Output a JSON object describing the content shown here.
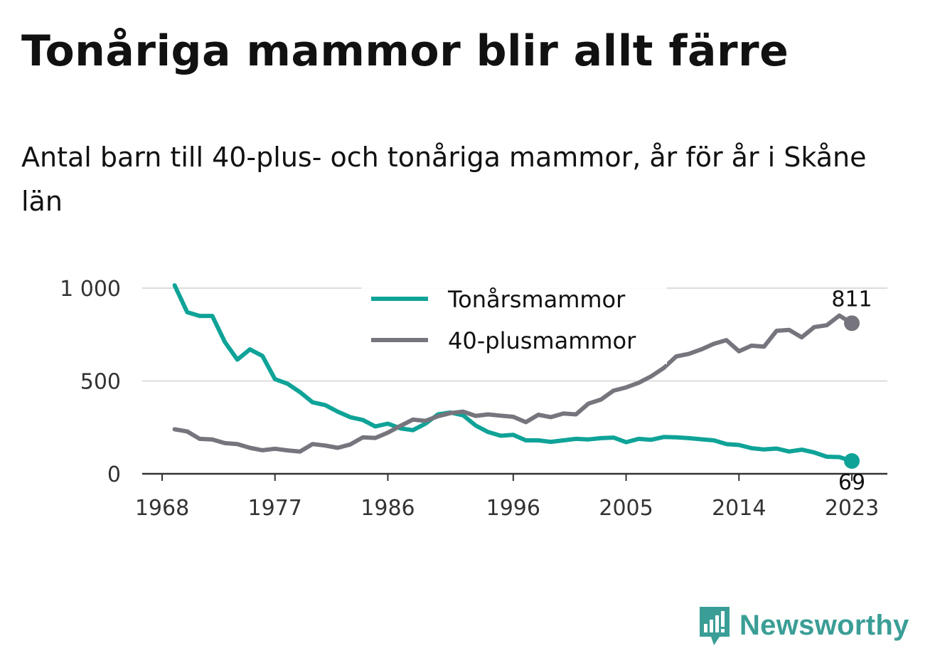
{
  "chart_data": {
    "type": "line",
    "title": "Tonåriga mammor blir allt färre",
    "subtitle": "Antal barn till 40-plus- och tonåriga mammor, år för år i Skåne län",
    "xlabel": "",
    "ylabel": "",
    "x": [
      1969,
      1970,
      1971,
      1972,
      1973,
      1974,
      1975,
      1976,
      1977,
      1978,
      1979,
      1980,
      1981,
      1982,
      1983,
      1984,
      1985,
      1986,
      1987,
      1988,
      1989,
      1990,
      1991,
      1992,
      1993,
      1994,
      1995,
      1996,
      1997,
      1998,
      1999,
      2000,
      2001,
      2002,
      2003,
      2004,
      2005,
      2006,
      2007,
      2008,
      2009,
      2010,
      2011,
      2012,
      2013,
      2014,
      2015,
      2016,
      2017,
      2018,
      2019,
      2020,
      2021,
      2022,
      2023
    ],
    "series": [
      {
        "name": "Tonårsmammor",
        "color": "#0fa398",
        "values": [
          1015,
          870,
          850,
          850,
          710,
          615,
          670,
          635,
          510,
          485,
          440,
          385,
          370,
          335,
          305,
          290,
          255,
          270,
          245,
          235,
          270,
          320,
          330,
          315,
          260,
          225,
          205,
          210,
          180,
          180,
          172,
          180,
          188,
          185,
          192,
          195,
          170,
          188,
          183,
          198,
          196,
          192,
          186,
          180,
          160,
          155,
          138,
          131,
          136,
          120,
          130,
          115,
          92,
          90,
          69
        ],
        "end_label": "69"
      },
      {
        "name": "40-plusmammor",
        "color": "#76757d",
        "values": [
          240,
          228,
          188,
          185,
          165,
          160,
          140,
          127,
          135,
          126,
          120,
          160,
          152,
          140,
          158,
          196,
          193,
          222,
          258,
          292,
          285,
          310,
          327,
          335,
          312,
          320,
          313,
          307,
          278,
          318,
          305,
          325,
          320,
          378,
          400,
          448,
          465,
          490,
          525,
          570,
          632,
          646,
          670,
          700,
          720,
          660,
          690,
          685,
          770,
          775,
          735,
          790,
          800,
          852,
          811
        ],
        "end_label": "811"
      }
    ],
    "yticks": [
      {
        "value": 0,
        "label": "0"
      },
      {
        "value": 500,
        "label": "500"
      },
      {
        "value": 1000,
        "label": "1 000"
      }
    ],
    "xticks": [
      1968,
      1977,
      1986,
      1996,
      2005,
      2014,
      2023
    ],
    "xlim": [
      1968,
      2024
    ],
    "ylim": [
      0,
      1000
    ],
    "grid": true,
    "legend_position": "top-center"
  },
  "brand": {
    "name": "Newsworthy",
    "icon": "newsworthy-logo-icon",
    "color": "#3a9e96"
  }
}
